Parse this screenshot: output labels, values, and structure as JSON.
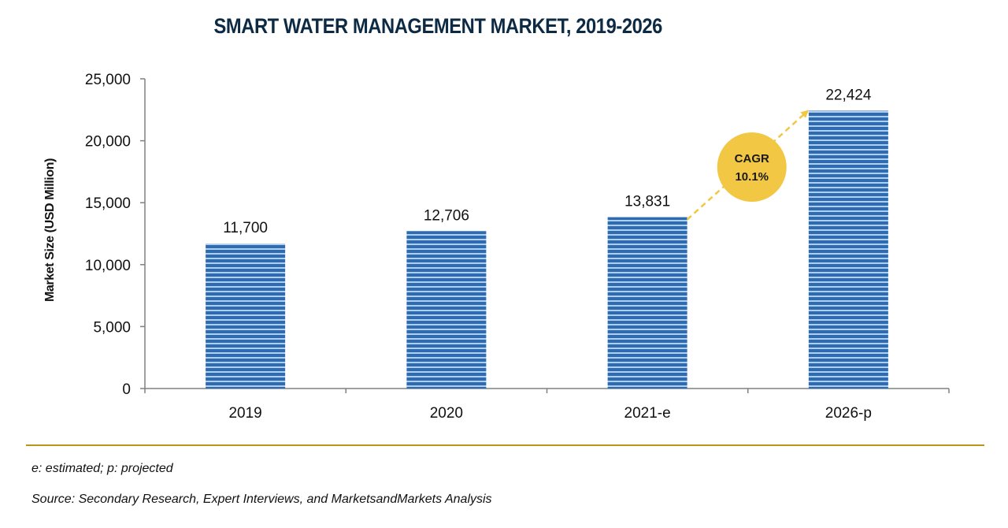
{
  "chart_data": {
    "type": "bar",
    "title": "SMART WATER MANAGEMENT MARKET, 2019-2026",
    "xlabel": "",
    "ylabel": "Market Size (USD Million)",
    "categories": [
      "2019",
      "2020",
      "2021-e",
      "2026-p"
    ],
    "values": [
      11700,
      12706,
      13831,
      22424
    ],
    "value_labels": [
      "11,700",
      "12,706",
      "13,831",
      "22,424"
    ],
    "ylim": [
      0,
      25000
    ],
    "yticks": [
      0,
      5000,
      10000,
      15000,
      20000,
      25000
    ],
    "ytick_labels": [
      "0",
      "5,000",
      "10,000",
      "15,000",
      "20,000",
      "25,000"
    ],
    "grid": false,
    "legend": "none",
    "annotation": {
      "label": "CAGR",
      "value": "10.1%",
      "from_category": "2021-e",
      "to_category": "2026-p"
    },
    "colors": {
      "bar": "#2b6cb5",
      "bar_stripe": "#c9dcf2",
      "annotation": "#f2c744",
      "axis": "#808080",
      "title": "#0d2a45",
      "divider": "#b8961a"
    }
  },
  "footnotes": {
    "legend_note": "e: estimated; p: projected",
    "source": "Source: Secondary Research, Expert Interviews, and MarketsandMarkets Analysis"
  }
}
